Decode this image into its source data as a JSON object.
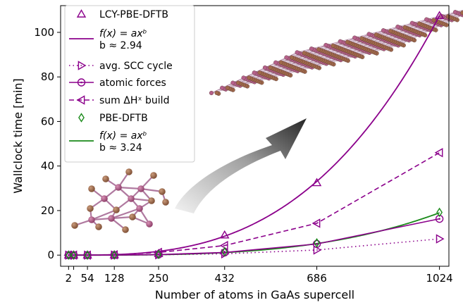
{
  "chart_data": {
    "type": "line",
    "xlabel": "Number of atoms in GaAs supercell",
    "ylabel": "Wallclock time [min]",
    "xlim": [
      -20,
      1050
    ],
    "ylim": [
      -5,
      112
    ],
    "x_ticks": [
      2,
      16,
      54,
      128,
      250,
      432,
      686,
      1024
    ],
    "x_tick_labels": [
      "2",
      "",
      "54",
      "128",
      "250",
      "432",
      "686",
      "1024"
    ],
    "y_ticks": [
      0,
      20,
      40,
      60,
      80,
      100
    ],
    "y_tick_labels": [
      "0",
      "20",
      "40",
      "60",
      "80",
      "100"
    ],
    "grid": false,
    "legend_placement": "top-left",
    "x": [
      2,
      16,
      54,
      128,
      250,
      432,
      686,
      1024
    ],
    "series": [
      {
        "name": "LCY-PBE-DFTB",
        "kind": "markers",
        "marker": "triangle-up",
        "color": "#8b008b",
        "values": [
          0.0,
          0.0,
          0.02,
          0.1,
          0.7,
          9.0,
          32.5,
          107.5
        ]
      },
      {
        "name": "avg. SCC cycle",
        "kind": "line+markers",
        "style": "dotted",
        "marker": "triangle-right",
        "color": "#8b008b",
        "values": [
          0.0,
          0.0,
          0.0,
          0.02,
          0.15,
          0.6,
          2.3,
          7.3
        ]
      },
      {
        "name": "atomic forces",
        "kind": "line+markers",
        "style": "solid",
        "marker": "circle-dot",
        "color": "#8b008b",
        "values": [
          0.0,
          0.0,
          0.0,
          0.03,
          0.25,
          1.2,
          5.0,
          16.3
        ]
      },
      {
        "name": "sum ΔHˣ build",
        "kind": "line+markers",
        "style": "dashed",
        "marker": "triangle-left",
        "color": "#8b008b",
        "values": [
          0.0,
          0.0,
          0.0,
          0.15,
          1.2,
          4.3,
          14.3,
          46.0
        ]
      },
      {
        "name": "PBE-DFTB",
        "kind": "markers",
        "marker": "diamond",
        "color": "#1a8a1a",
        "values": [
          0.0,
          0.0,
          0.0,
          0.03,
          0.3,
          1.5,
          5.5,
          19.2
        ]
      }
    ],
    "fits": [
      {
        "label": "f(x) = axᵇ",
        "exponent_label": "b ≈ 2.94",
        "b": 2.94,
        "anchor_x": 1024,
        "anchor_y": 107.5,
        "color": "#8b008b"
      },
      {
        "label": "f(x) = axᵇ",
        "exponent_label": "b ≈ 3.24",
        "b": 3.24,
        "anchor_x": 1024,
        "anchor_y": 19.0,
        "color": "#1a8a1a"
      }
    ],
    "insets": [
      "small GaAs cluster (atom balls)",
      "large GaAs supercell slab (atom balls)"
    ],
    "colors": {
      "purple": "#8b008b",
      "green": "#1a8a1a",
      "atom_brown": "#a0694a",
      "atom_pink": "#b5608a"
    }
  }
}
